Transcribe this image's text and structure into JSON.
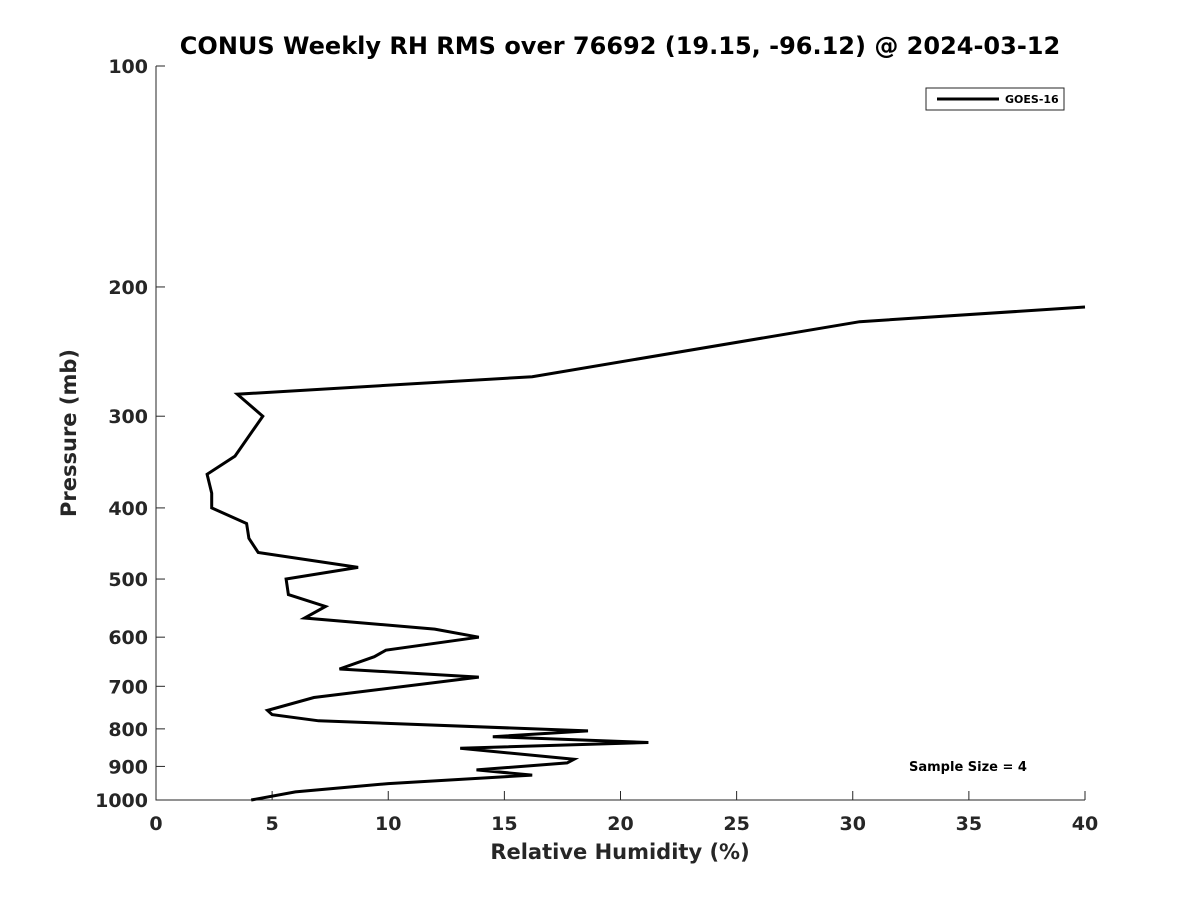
{
  "chart_data": {
    "type": "line",
    "title": "CONUS Weekly RH RMS over 76692 (19.15, -96.12) @ 2024-03-12",
    "xlabel": "Relative Humidity (%)",
    "ylabel": "Pressure (mb)",
    "xlim": [
      0,
      40
    ],
    "ylim": [
      100,
      1000
    ],
    "y_scale": "log",
    "y_reversed": true,
    "x_ticks": [
      0,
      5,
      10,
      15,
      20,
      25,
      30,
      35,
      40
    ],
    "y_ticks": [
      100,
      200,
      300,
      400,
      500,
      600,
      700,
      800,
      900,
      1000
    ],
    "grid": false,
    "legend_position": "top-right",
    "series": [
      {
        "name": "GOES-16",
        "color": "#000000",
        "points": [
          {
            "x": 4.1,
            "p": 1000
          },
          {
            "x": 6.0,
            "p": 975
          },
          {
            "x": 10.0,
            "p": 950
          },
          {
            "x": 16.2,
            "p": 925
          },
          {
            "x": 13.8,
            "p": 910
          },
          {
            "x": 17.7,
            "p": 890
          },
          {
            "x": 18.0,
            "p": 880
          },
          {
            "x": 13.1,
            "p": 850
          },
          {
            "x": 21.2,
            "p": 835
          },
          {
            "x": 14.5,
            "p": 820
          },
          {
            "x": 18.6,
            "p": 805
          },
          {
            "x": 7.0,
            "p": 780
          },
          {
            "x": 5.0,
            "p": 765
          },
          {
            "x": 4.8,
            "p": 755
          },
          {
            "x": 6.8,
            "p": 725
          },
          {
            "x": 13.9,
            "p": 680
          },
          {
            "x": 7.9,
            "p": 663
          },
          {
            "x": 9.4,
            "p": 638
          },
          {
            "x": 9.9,
            "p": 625
          },
          {
            "x": 13.9,
            "p": 600
          },
          {
            "x": 12.0,
            "p": 585
          },
          {
            "x": 6.4,
            "p": 565
          },
          {
            "x": 7.3,
            "p": 545
          },
          {
            "x": 5.7,
            "p": 525
          },
          {
            "x": 5.6,
            "p": 500
          },
          {
            "x": 8.7,
            "p": 482
          },
          {
            "x": 4.4,
            "p": 460
          },
          {
            "x": 4.0,
            "p": 440
          },
          {
            "x": 3.9,
            "p": 420
          },
          {
            "x": 2.4,
            "p": 400
          },
          {
            "x": 2.4,
            "p": 382
          },
          {
            "x": 2.2,
            "p": 360
          },
          {
            "x": 3.4,
            "p": 340
          },
          {
            "x": 4.6,
            "p": 300
          },
          {
            "x": 3.5,
            "p": 280
          },
          {
            "x": 16.2,
            "p": 265
          },
          {
            "x": 30.3,
            "p": 223
          },
          {
            "x": 40.0,
            "p": 213
          }
        ]
      }
    ],
    "annotation": "Sample Size = 4"
  }
}
